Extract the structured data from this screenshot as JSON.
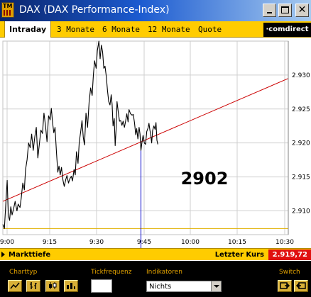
{
  "window": {
    "title": "DAX (DAX Performance-Index)",
    "icon_label": "TM",
    "controls": [
      "minimize",
      "maximize",
      "close"
    ],
    "close_glyph": "✕"
  },
  "tabs": [
    {
      "label": "Intraday",
      "active": true
    },
    {
      "label": "3 Monate",
      "active": false
    },
    {
      "label": "6 Monate",
      "active": false
    },
    {
      "label": "12 Monate",
      "active": false
    },
    {
      "label": "Quote",
      "active": false
    }
  ],
  "brand": {
    "label": "comdirect"
  },
  "chart_data": {
    "type": "line",
    "x_ticks": [
      "9:00",
      "9:15",
      "9:30",
      "9:45",
      "10:00",
      "10:15",
      "10:30"
    ],
    "y_ticks": [
      "2.930",
      "2.925",
      "2.920",
      "2.915",
      "2.910"
    ],
    "y_values": [
      2930,
      2925,
      2920,
      2915,
      2910
    ],
    "ylim": [
      2906.5,
      2935
    ],
    "x_range_minutes": [
      0,
      93
    ],
    "grid": true,
    "series": [
      {
        "role": "price",
        "color": "#000000",
        "points": [
          [
            0,
            2908.0
          ],
          [
            0.5,
            2907.4
          ],
          [
            1.0,
            2911.3
          ],
          [
            1.4,
            2914.5
          ],
          [
            1.8,
            2909.3
          ],
          [
            2.2,
            2908.6
          ],
          [
            2.6,
            2910.6
          ],
          [
            3.0,
            2909.4
          ],
          [
            3.5,
            2910.3
          ],
          [
            4.0,
            2911.4
          ],
          [
            4.6,
            2910.0
          ],
          [
            5.0,
            2911.0
          ],
          [
            5.6,
            2910.5
          ],
          [
            6.0,
            2911.9
          ],
          [
            6.5,
            2914.1
          ],
          [
            7.0,
            2913.1
          ],
          [
            7.4,
            2916.1
          ],
          [
            7.9,
            2917.5
          ],
          [
            8.4,
            2920.0
          ],
          [
            8.9,
            2919.3
          ],
          [
            9.4,
            2921.3
          ],
          [
            9.9,
            2918.9
          ],
          [
            10.4,
            2920.9
          ],
          [
            10.9,
            2922.3
          ],
          [
            11.4,
            2917.8
          ],
          [
            11.9,
            2919.8
          ],
          [
            12.4,
            2921.9
          ],
          [
            12.9,
            2921.4
          ],
          [
            13.4,
            2924.4
          ],
          [
            13.9,
            2922.5
          ],
          [
            14.4,
            2920.2
          ],
          [
            14.9,
            2924.0
          ],
          [
            15.4,
            2923.4
          ],
          [
            15.8,
            2925.1
          ],
          [
            16.2,
            2923.0
          ],
          [
            16.6,
            2921.5
          ],
          [
            17.0,
            2922.3
          ],
          [
            17.5,
            2918.5
          ],
          [
            17.9,
            2915.7
          ],
          [
            18.3,
            2916.6
          ],
          [
            18.7,
            2915.3
          ],
          [
            19.1,
            2916.4
          ],
          [
            19.6,
            2914.5
          ],
          [
            20.0,
            2913.6
          ],
          [
            20.5,
            2914.6
          ],
          [
            20.9,
            2915.2
          ],
          [
            21.4,
            2914.1
          ],
          [
            21.8,
            2914.7
          ],
          [
            22.3,
            2915.1
          ],
          [
            22.7,
            2914.4
          ],
          [
            23.2,
            2916.1
          ],
          [
            23.6,
            2915.3
          ],
          [
            24.0,
            2918.7
          ],
          [
            24.5,
            2917.0
          ],
          [
            24.9,
            2920.1
          ],
          [
            25.4,
            2921.8
          ],
          [
            25.8,
            2923.3
          ],
          [
            26.2,
            2920.8
          ],
          [
            26.6,
            2919.7
          ],
          [
            27.1,
            2924.4
          ],
          [
            27.6,
            2922.3
          ],
          [
            28.1,
            2926.0
          ],
          [
            28.6,
            2928.1
          ],
          [
            29.1,
            2927.0
          ],
          [
            29.5,
            2930.0
          ],
          [
            29.9,
            2932.1
          ],
          [
            30.4,
            2931.0
          ],
          [
            30.8,
            2933.6
          ],
          [
            31.3,
            2935.0
          ],
          [
            31.7,
            2932.4
          ],
          [
            32.1,
            2934.4
          ],
          [
            32.5,
            2933.4
          ],
          [
            32.9,
            2931.0
          ],
          [
            33.3,
            2931.3
          ],
          [
            33.7,
            2929.8
          ],
          [
            34.1,
            2927.7
          ],
          [
            34.5,
            2926.1
          ],
          [
            34.9,
            2925.6
          ],
          [
            35.3,
            2927.1
          ],
          [
            35.6,
            2925.7
          ],
          [
            35.9,
            2922.5
          ],
          [
            36.3,
            2923.6
          ],
          [
            36.6,
            2919.6
          ],
          [
            36.9,
            2922.0
          ],
          [
            37.2,
            2926.1
          ],
          [
            37.6,
            2924.6
          ],
          [
            38.0,
            2923.2
          ],
          [
            38.4,
            2923.3
          ],
          [
            38.8,
            2922.6
          ],
          [
            39.2,
            2923.2
          ],
          [
            39.6,
            2922.3
          ],
          [
            40.0,
            2923.2
          ],
          [
            40.4,
            2924.3
          ],
          [
            40.8,
            2923.1
          ],
          [
            41.1,
            2924.9
          ],
          [
            41.6,
            2924.3
          ],
          [
            42.1,
            2924.1
          ],
          [
            42.5,
            2924.2
          ],
          [
            42.9,
            2923.0
          ],
          [
            43.3,
            2921.2
          ],
          [
            43.6,
            2922.1
          ],
          [
            44.0,
            2920.6
          ],
          [
            44.4,
            2922.3
          ],
          [
            44.7,
            2921.3
          ],
          [
            45.0,
            2918.9
          ],
          [
            45.3,
            2920.0
          ],
          [
            45.7,
            2921.1
          ],
          [
            46.1,
            2920.0
          ],
          [
            46.5,
            2919.8
          ],
          [
            46.9,
            2921.7
          ],
          [
            47.3,
            2922.2
          ],
          [
            47.6,
            2922.9
          ],
          [
            47.9,
            2921.9
          ],
          [
            48.2,
            2921.2
          ],
          [
            48.5,
            2920.0
          ],
          [
            48.8,
            2921.8
          ],
          [
            49.2,
            2922.5
          ],
          [
            49.6,
            2922.0
          ],
          [
            49.9,
            2923.0
          ],
          [
            50.2,
            2920.4
          ],
          [
            50.5,
            2919.8
          ]
        ]
      },
      {
        "role": "trend",
        "color": "#cc0000",
        "points": [
          [
            0,
            2911.4
          ],
          [
            93,
            2929.5
          ]
        ]
      },
      {
        "role": "reference",
        "color": "#e0b000",
        "points": [
          [
            0,
            2907.4
          ],
          [
            93,
            2907.4
          ]
        ]
      }
    ],
    "cursor_line": {
      "x": 45.0,
      "color": "#0000cc",
      "label": "2902"
    }
  },
  "status": {
    "markttiefe_label": "Markttiefe",
    "last_price_label": "Letzter Kurs",
    "last_price_value": "2.919,72"
  },
  "controls": {
    "charttyp_label": "Charttyp",
    "charttyp_buttons": [
      "line-chart-icon",
      "ohlc-chart-icon",
      "candlestick-chart-icon",
      "bar-chart-icon"
    ],
    "tickfrequenz_label": "Tickfrequenz",
    "tickfrequenz_value": "",
    "indikatoren_label": "Indikatoren",
    "indikatoren_value": "Nichts",
    "switch_label": "Switch",
    "switch_buttons": [
      "switch-left-icon",
      "switch-right-icon"
    ]
  },
  "colors": {
    "tab_bar": "#ffcc00",
    "price_line": "#000000",
    "trend_line": "#cc0000",
    "cursor_line": "#0000cc",
    "last_price_bg": "#e01010",
    "controls_bg": "#000000",
    "controls_label": "#e0a000"
  }
}
